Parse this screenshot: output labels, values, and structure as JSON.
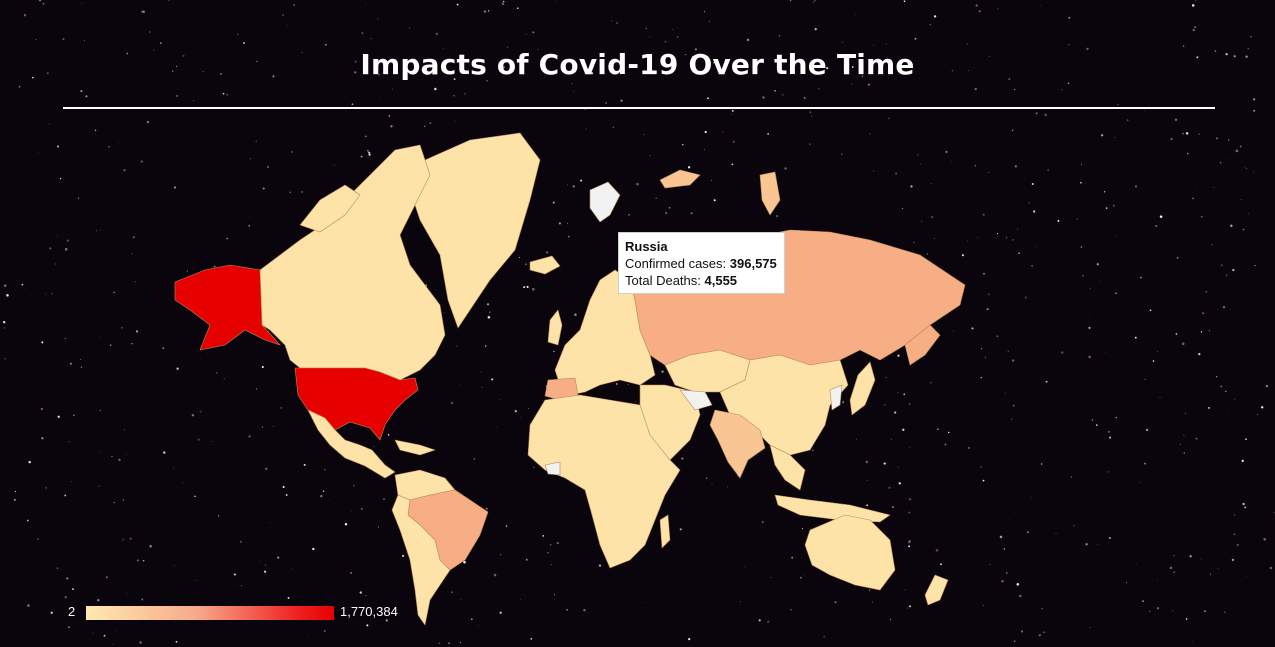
{
  "page": {
    "title": "Impacts of Covid-19 Over the Time"
  },
  "map": {
    "metric": "Confirmed cases",
    "legend": {
      "min_label": "2",
      "max_label": "1,770,384",
      "min_value": 2,
      "max_value": 1770384
    },
    "colors": {
      "low": "#fde3a8",
      "mid": "#f7ae84",
      "high": "#e60000",
      "no_data": "#f2f2f2"
    },
    "tooltip": {
      "country": "Russia",
      "cases_label": "Confirmed cases: ",
      "cases_value": "396,575",
      "deaths_label": "Total Deaths: ",
      "deaths_value": "4,555"
    },
    "countries": [
      {
        "name": "United States",
        "level": "high"
      },
      {
        "name": "Alaska",
        "level": "high"
      },
      {
        "name": "Russia",
        "level": "mid"
      },
      {
        "name": "Brazil",
        "level": "mid"
      },
      {
        "name": "Canada",
        "level": "low"
      },
      {
        "name": "Greenland",
        "level": "low"
      },
      {
        "name": "China",
        "level": "low"
      },
      {
        "name": "Africa",
        "level": "low"
      },
      {
        "name": "Australia",
        "level": "low"
      }
    ]
  }
}
